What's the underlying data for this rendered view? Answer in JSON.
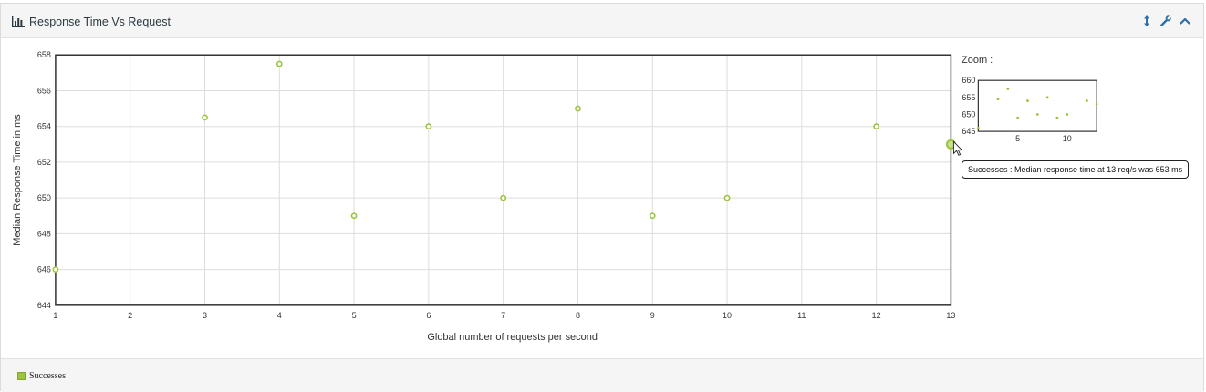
{
  "panel": {
    "title": "Response Time Vs Request",
    "icons": [
      "bar-chart-icon",
      "resize-vertical-icon",
      "wrench-icon",
      "chevron-up-icon"
    ]
  },
  "zoom": {
    "label": "Zoom :"
  },
  "tooltip": {
    "text": "Successes : Median response time at 13 req/s was 653 ms"
  },
  "legend": {
    "items": [
      {
        "label": "Successes",
        "color": "#9bc53d"
      }
    ]
  },
  "chart_data": {
    "type": "scatter",
    "title": "Response Time Vs Request",
    "xlabel": "Global number of requests per second",
    "ylabel": "Median Response Time in ms",
    "xlim": [
      1,
      13
    ],
    "ylim": [
      644,
      658
    ],
    "xticks": [
      1,
      2,
      3,
      4,
      5,
      6,
      7,
      8,
      9,
      10,
      11,
      12,
      13
    ],
    "yticks": [
      644,
      646,
      648,
      650,
      652,
      654,
      656,
      658
    ],
    "grid": true,
    "legend": "bottom-left",
    "series": [
      {
        "name": "Successes",
        "color": "#9bc53d",
        "x": [
          1,
          3,
          4,
          5,
          6,
          7,
          8,
          9,
          10,
          12,
          13
        ],
        "y": [
          646,
          654.5,
          657.5,
          649,
          654,
          650,
          655,
          649,
          650,
          654,
          653
        ]
      }
    ],
    "zoom_chart": {
      "xticks": [
        5,
        10
      ],
      "yticks": [
        645,
        650,
        655,
        660
      ],
      "xlim": [
        1,
        13
      ],
      "ylim": [
        645,
        660
      ]
    }
  }
}
